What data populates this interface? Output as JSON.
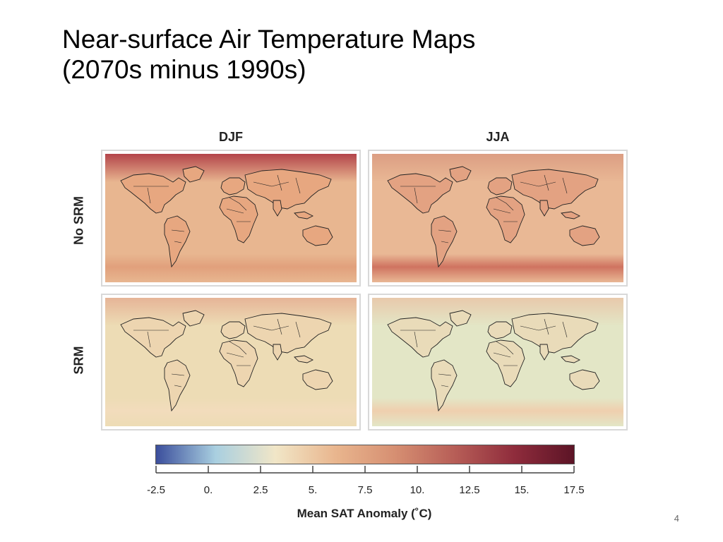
{
  "slide": {
    "title_line1": "Near-surface Air Temperature Maps",
    "title_line2": "(2070s minus 1990s)",
    "page_number": "4"
  },
  "figure": {
    "columns": [
      "DJF",
      "JJA"
    ],
    "rows": [
      "No SRM",
      "SRM"
    ],
    "panels": [
      {
        "row": "No SRM",
        "column": "DJF",
        "colors": {
          "bg": "#e8b690",
          "north": "#b3444a",
          "south_band": "#e1a07c",
          "land": "#e7a780"
        }
      },
      {
        "row": "No SRM",
        "column": "JJA",
        "colors": {
          "bg": "#e9b895",
          "north": "#dc9e83",
          "south_band": "#cf7360",
          "land": "#e3a282"
        }
      },
      {
        "row": "SRM",
        "column": "DJF",
        "colors": {
          "bg": "#eddcb5",
          "north": "#e6b497",
          "south_band": "#f2dcbc",
          "land": "#edd5b0"
        }
      },
      {
        "row": "SRM",
        "column": "JJA",
        "colors": {
          "bg": "#e3e6c6",
          "north": "#e8c9ab",
          "south_band": "#efcfae",
          "land": "#e9dbb9"
        }
      }
    ],
    "colorbar": {
      "ticks": [
        "-2.5",
        "0.",
        "2.5",
        "5.",
        "7.5",
        "10.",
        "12.5",
        "15.",
        "17.5"
      ],
      "label": "Mean SAT Anomaly (˚C)",
      "colors": [
        "#3b4e9c",
        "#a9cfe0",
        "#f1e6c7",
        "#e9b68e",
        "#d68f72",
        "#b75e57",
        "#8f2c3c",
        "#5c1426"
      ]
    }
  }
}
